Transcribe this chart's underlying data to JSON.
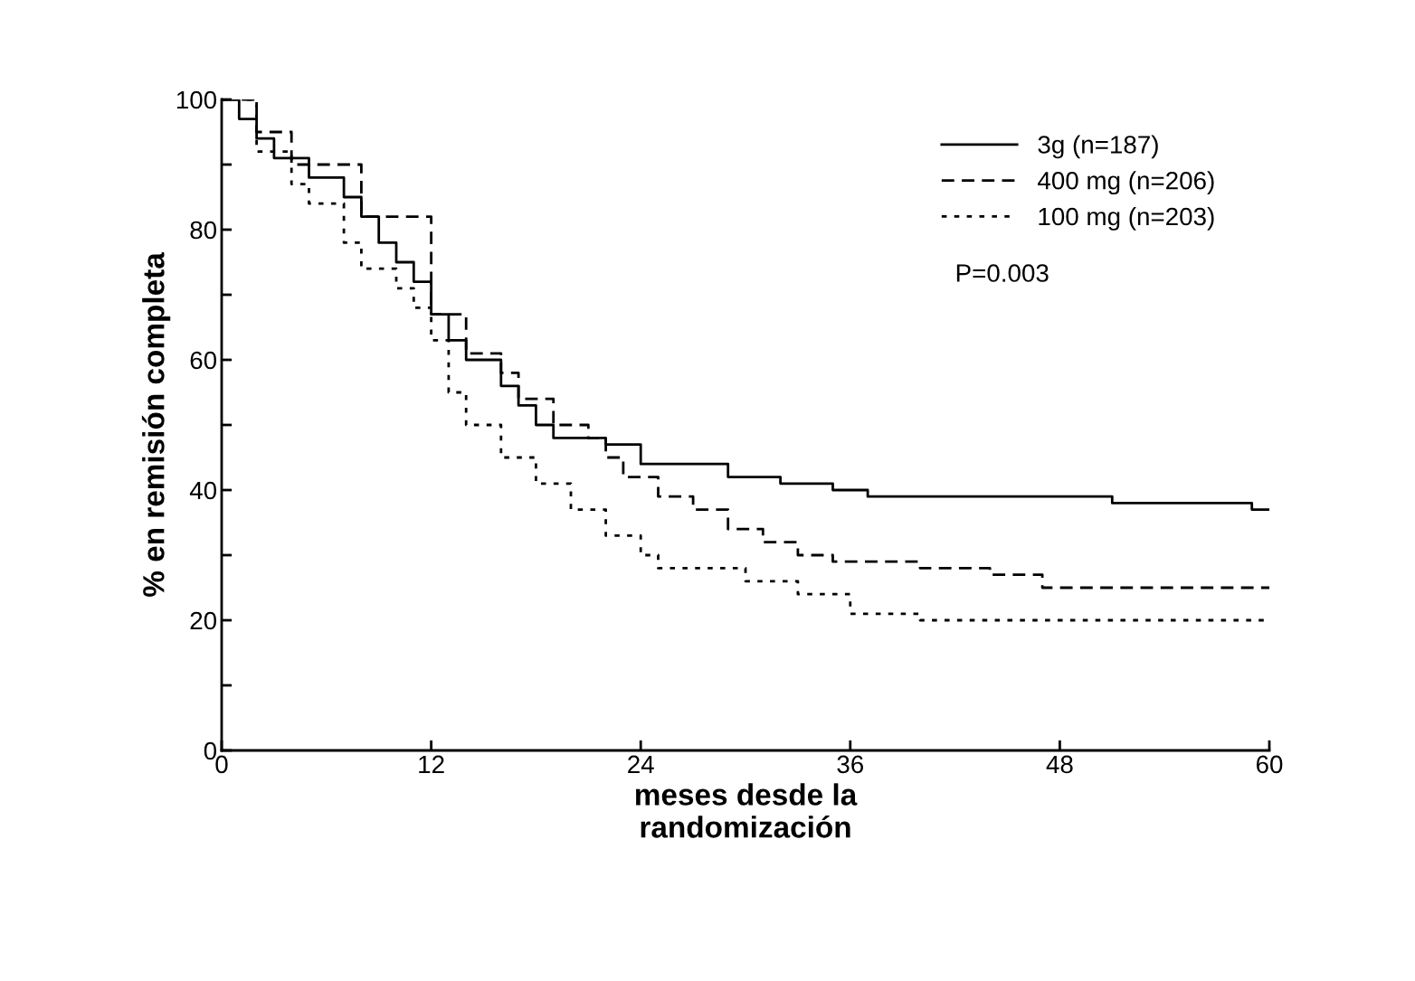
{
  "chart_data": {
    "type": "step",
    "xlabel": "meses desde la\nrandomización",
    "ylabel": "% en remisión completa",
    "xlim": [
      0,
      60
    ],
    "xticks": [
      0,
      12,
      24,
      36,
      48,
      60
    ],
    "ylim": [
      0,
      100
    ],
    "yticks": [
      0,
      {
        "value": 10,
        "label": null
      },
      20,
      {
        "value": 30,
        "label": null
      },
      40,
      {
        "value": 50,
        "label": null
      },
      60,
      {
        "value": 70,
        "label": null
      },
      80,
      {
        "value": 90,
        "label": null
      },
      100
    ],
    "legend": "top right",
    "grid": false,
    "annotations": [
      "P=0.003"
    ],
    "series": [
      {
        "name": "3g (n=187)",
        "color": "#000000",
        "line_style": "solid",
        "x": [
          0,
          1,
          2,
          3,
          5,
          7,
          8,
          9,
          10,
          11,
          12,
          13,
          14,
          16,
          17,
          18,
          19,
          22,
          24,
          28,
          29,
          32,
          35,
          37,
          45,
          51,
          58,
          59,
          60
        ],
        "values": [
          100,
          97,
          94,
          91,
          88,
          85,
          82,
          78,
          75,
          72,
          67,
          63,
          60,
          56,
          53,
          50,
          48,
          47,
          44,
          44,
          42,
          41,
          40,
          39,
          39,
          38,
          38,
          37,
          37
        ]
      },
      {
        "name": "400 mg (n=206)",
        "color": "#000000",
        "line_style": "dashed",
        "x": [
          0,
          2,
          4,
          8,
          12,
          14,
          16,
          17,
          19,
          21,
          22,
          23,
          25,
          27,
          29,
          31,
          33,
          35,
          40,
          44,
          47,
          60
        ],
        "values": [
          100,
          95,
          90,
          82,
          67,
          61,
          58,
          54,
          50,
          48,
          45,
          42,
          39,
          37,
          34,
          32,
          30,
          29,
          28,
          27,
          25,
          25
        ]
      },
      {
        "name": "100 mg (n=203)",
        "color": "#000000",
        "line_style": "dotted",
        "x": [
          0,
          2,
          4,
          5,
          7,
          8,
          10,
          11,
          12,
          13,
          14,
          16,
          18,
          20,
          22,
          24,
          25,
          28,
          30,
          33,
          36,
          40,
          60
        ],
        "values": [
          100,
          92,
          87,
          84,
          78,
          74,
          71,
          68,
          63,
          55,
          50,
          45,
          41,
          37,
          33,
          30,
          28,
          28,
          26,
          24,
          21,
          20,
          20
        ]
      }
    ]
  }
}
